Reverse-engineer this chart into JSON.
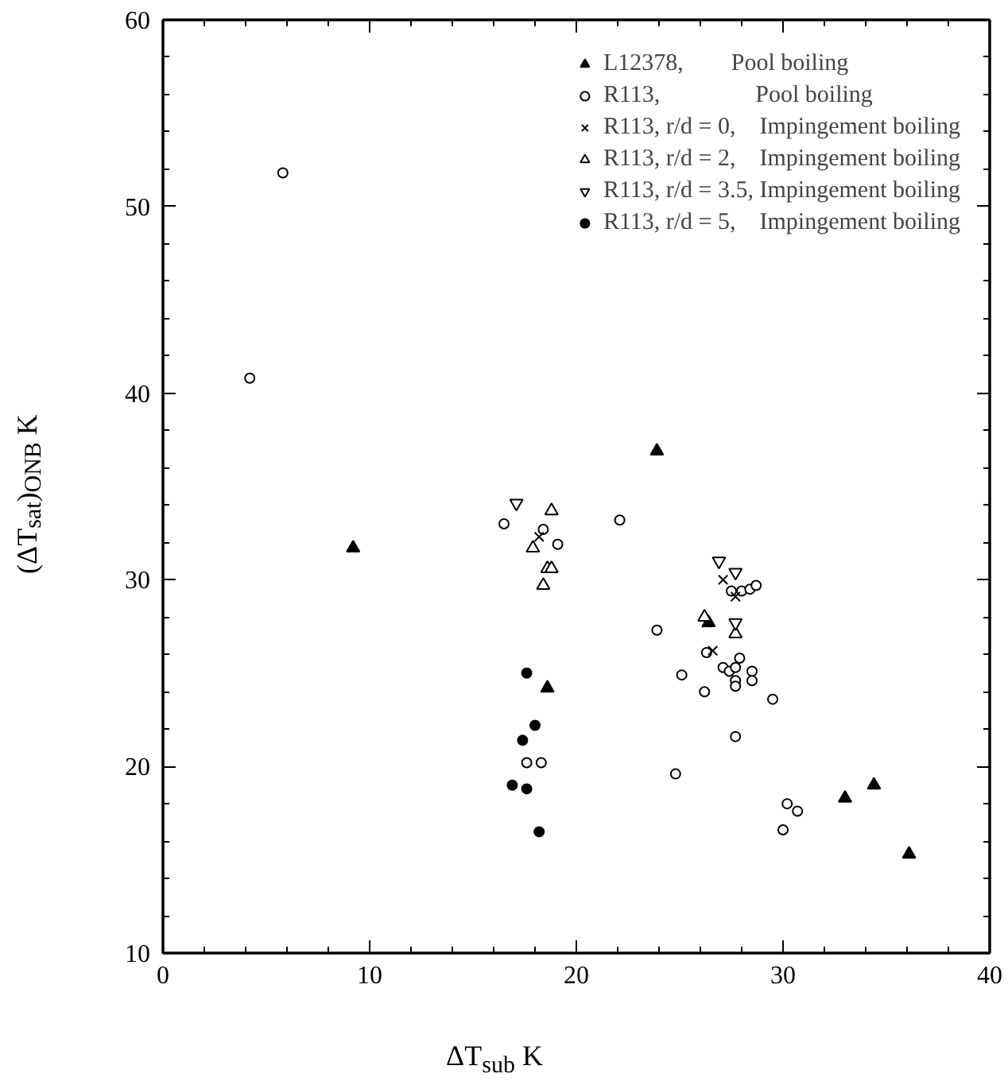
{
  "chart_data": {
    "type": "scatter",
    "xlabel": "ΔT$_{sub}$ K",
    "ylabel": "(ΔT$_{sat}$)$_{ONB}$ K",
    "xlim": [
      0,
      40
    ],
    "ylim": [
      10,
      60
    ],
    "xticks": [
      0,
      10,
      20,
      30,
      40
    ],
    "yticks": [
      10,
      20,
      30,
      40,
      50,
      60
    ],
    "grid": false,
    "legend": "top right",
    "series": [
      {
        "name": "L12378,        Pool boiling",
        "color": "#000000",
        "marker": "triangle",
        "x": [
          9.2,
          18.6,
          23.9,
          26.4,
          33.0,
          34.4,
          36.1
        ],
        "values": [
          31.7,
          24.2,
          36.9,
          27.7,
          18.3,
          19.0,
          15.3
        ]
      },
      {
        "name": "R113,                Pool boiling",
        "color": "#000000",
        "marker": "circle",
        "x": [
          4.2,
          5.8,
          16.5,
          22.1,
          18.4,
          19.1,
          17.6,
          18.3,
          27.5,
          28.0,
          28.4,
          28.7,
          23.9,
          26.3,
          27.9,
          27.1,
          27.4,
          27.7,
          28.5,
          25.1,
          27.7,
          27.7,
          28.5,
          26.2,
          29.5,
          27.7,
          24.8,
          30.2,
          30.7,
          30.0
        ],
        "values": [
          40.8,
          51.8,
          33.0,
          33.2,
          32.7,
          31.9,
          20.2,
          20.2,
          29.4,
          29.4,
          29.5,
          29.7,
          27.3,
          26.1,
          25.8,
          25.3,
          25.1,
          25.3,
          25.1,
          24.9,
          24.6,
          24.3,
          24.6,
          24.0,
          23.6,
          21.6,
          19.6,
          18.0,
          17.6,
          16.6
        ]
      },
      {
        "name": "R113, r/d = 0,    Impingement boiling",
        "color": "#000000",
        "marker": "cross",
        "x": [
          18.2,
          27.1,
          27.7,
          26.3,
          26.6
        ],
        "values": [
          32.3,
          30.0,
          29.1,
          27.7,
          26.2
        ]
      },
      {
        "name": "R113, r/d = 2,    Impingement boiling",
        "color": "#000000",
        "marker": "triangle",
        "x": [
          18.8,
          17.9,
          18.6,
          18.8,
          18.4,
          26.2,
          27.7
        ],
        "values": [
          33.7,
          31.7,
          30.6,
          30.6,
          29.7,
          28.0,
          27.1
        ]
      },
      {
        "name": "R113, r/d = 3.5, Impingement boiling",
        "color": "#000000",
        "x": [
          17.1,
          26.9,
          27.7,
          27.7
        ],
        "values": [
          34.1,
          31.0,
          30.4,
          27.7
        ]
      },
      {
        "name": "R113, r/d = 5,    Impingement boiling",
        "color": "#000000",
        "marker": "circle",
        "x": [
          17.6,
          18.0,
          17.4,
          16.9,
          17.6,
          18.2
        ],
        "values": [
          25.0,
          22.2,
          21.4,
          19.0,
          18.8,
          16.5
        ]
      }
    ]
  }
}
